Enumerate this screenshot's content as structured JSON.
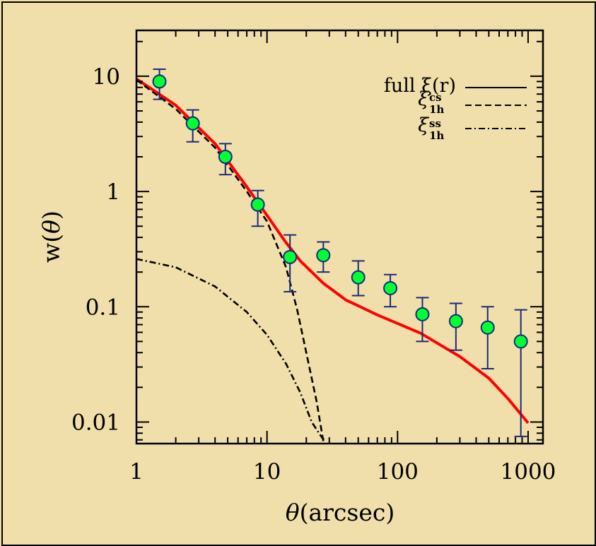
{
  "chart_data": {
    "type": "line",
    "xlabel_symbol": "θ",
    "xlabel_text": "(arcsec)",
    "ylabel_text": "w(",
    "ylabel_symbol": "θ",
    "ylabel_close": ")",
    "x_scale": "log",
    "y_scale": "log",
    "xlim": [
      1,
      1300
    ],
    "ylim": [
      0.0065,
      25
    ],
    "x_ticks": [
      1,
      10,
      100,
      1000
    ],
    "x_tick_labels": [
      "1",
      "10",
      "100",
      "1000"
    ],
    "y_ticks": [
      0.01,
      0.1,
      1,
      10
    ],
    "y_tick_labels": [
      "0.01",
      "0.1",
      "1",
      "10"
    ],
    "grid": false,
    "legend_placement": "top-right",
    "legend": [
      {
        "label": "full  ξ(r)",
        "style": "solid"
      },
      {
        "label": "ξ",
        "sup": "cs",
        "sub": "1h",
        "style": "dashed"
      },
      {
        "label": "ξ",
        "sup": "ss",
        "sub": "1h",
        "style": "dashdot"
      }
    ],
    "series": [
      {
        "style": "solid",
        "color": "#ff0000",
        "x": [
          1,
          2,
          4,
          7,
          10,
          14,
          18,
          27,
          40,
          70,
          150,
          300,
          500,
          700,
          1000
        ],
        "y": [
          9.5,
          5.6,
          2.6,
          1.1,
          0.62,
          0.36,
          0.25,
          0.16,
          0.115,
          0.085,
          0.059,
          0.037,
          0.024,
          0.016,
          0.0098
        ]
      },
      {
        "style": "dashed",
        "color": "#000000",
        "x": [
          1,
          2,
          4,
          7,
          10,
          14,
          17,
          20,
          24,
          27
        ],
        "y": [
          9.3,
          5.2,
          2.4,
          1.0,
          0.55,
          0.22,
          0.095,
          0.04,
          0.015,
          0.0068
        ]
      },
      {
        "style": "dashdot",
        "color": "#000000",
        "x": [
          1,
          2,
          4,
          7,
          10,
          14,
          18,
          22,
          26,
          28
        ],
        "y": [
          0.26,
          0.22,
          0.15,
          0.09,
          0.057,
          0.032,
          0.018,
          0.01,
          0.0075,
          0.0068
        ]
      }
    ],
    "points": {
      "color": "#00ff33",
      "edge": "#1a2a7a",
      "x": [
        1.5,
        2.7,
        4.8,
        8.5,
        15,
        27,
        50,
        88,
        155,
        280,
        490,
        880
      ],
      "y": [
        9.0,
        3.9,
        2.0,
        0.77,
        0.27,
        0.28,
        0.18,
        0.145,
        0.086,
        0.075,
        0.066,
        0.05
      ],
      "err_hi": [
        11.5,
        5.1,
        2.6,
        1.02,
        0.42,
        0.365,
        0.25,
        0.19,
        0.12,
        0.107,
        0.1,
        0.094
      ],
      "err_lo": [
        6.3,
        2.7,
        1.4,
        0.5,
        0.135,
        0.2,
        0.125,
        0.1,
        0.05,
        0.042,
        0.029,
        0.0075
      ]
    }
  }
}
